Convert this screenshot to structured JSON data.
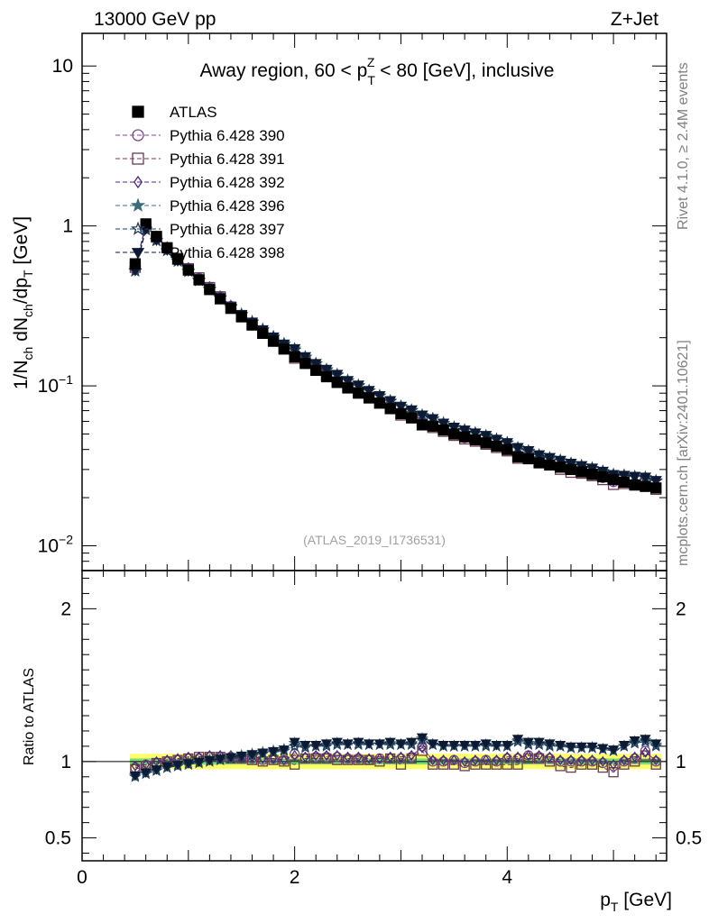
{
  "header": {
    "left": "13000 GeV pp",
    "right": "Z+Jet"
  },
  "plot_title": "Away region, 60 < p_T^Z < 80 [GeV], inclusive",
  "watermark": "(ATLAS_2019_I1736531)",
  "side_labels": {
    "rivet": "Rivet 4.1.0, ≥ 2.4M events",
    "mcplots": "mcplots.cern.ch [arXiv:2401.10621]"
  },
  "colors": {
    "ATLAS": "#000000",
    "p390": "#7b4a8c",
    "p391": "#6b3a52",
    "p392": "#4a2a7a",
    "p396": "#3a6b7a",
    "p397": "#1f3d5c",
    "p398": "#0d1a33",
    "band_yellow": "#ffff66",
    "band_green": "#77dd77"
  },
  "chart_data": [
    {
      "type": "scatter",
      "panel": "main",
      "ylabel": "1/N_ch dN_ch/dp_T [GeV]",
      "yscale": "log",
      "ylim": [
        0.007,
        16
      ],
      "xlim": [
        0,
        5.5
      ],
      "y_ticks": [
        {
          "value": 0.01,
          "label": "10",
          "exp": "−2"
        },
        {
          "value": 0.1,
          "label": "10",
          "exp": "−1"
        },
        {
          "value": 1,
          "label": "1",
          "exp": ""
        },
        {
          "value": 10,
          "label": "10",
          "exp": ""
        }
      ],
      "x": [
        0.5,
        0.6,
        0.7,
        0.8,
        0.9,
        1.0,
        1.1,
        1.2,
        1.3,
        1.4,
        1.5,
        1.6,
        1.7,
        1.8,
        1.9,
        2.0,
        2.1,
        2.2,
        2.3,
        2.4,
        2.5,
        2.6,
        2.7,
        2.8,
        2.9,
        3.0,
        3.1,
        3.2,
        3.3,
        3.4,
        3.5,
        3.6,
        3.7,
        3.8,
        3.9,
        4.0,
        4.1,
        4.2,
        4.3,
        4.4,
        4.5,
        4.6,
        4.7,
        4.8,
        4.9,
        5.0,
        5.1,
        5.2,
        5.3,
        5.4
      ],
      "atlas": [
        0.58,
        1.03,
        0.86,
        0.73,
        0.62,
        0.53,
        0.46,
        0.4,
        0.35,
        0.305,
        0.27,
        0.24,
        0.213,
        0.19,
        0.17,
        0.152,
        0.138,
        0.125,
        0.114,
        0.105,
        0.097,
        0.09,
        0.084,
        0.078,
        0.072,
        0.067,
        0.063,
        0.057,
        0.056,
        0.053,
        0.05,
        0.048,
        0.046,
        0.044,
        0.042,
        0.04,
        0.036,
        0.035,
        0.033,
        0.032,
        0.031,
        0.03,
        0.029,
        0.028,
        0.027,
        0.026,
        0.025,
        0.024,
        0.0235,
        0.023
      ],
      "legend": [
        {
          "name": "ATLAS",
          "marker": "square-filled",
          "color_key": "ATLAS"
        },
        {
          "name": "Pythia 6.428 390",
          "marker": "circle-open",
          "color_key": "p390"
        },
        {
          "name": "Pythia 6.428 391",
          "marker": "square-open",
          "color_key": "p391"
        },
        {
          "name": "Pythia 6.428 392",
          "marker": "diamond-open",
          "color_key": "p392"
        },
        {
          "name": "Pythia 6.428 396",
          "marker": "star-filled",
          "color_key": "p396"
        },
        {
          "name": "Pythia 6.428 397",
          "marker": "star-open",
          "color_key": "p397"
        },
        {
          "name": "Pythia 6.428 398",
          "marker": "triangle-down-filled",
          "color_key": "p398"
        }
      ]
    },
    {
      "type": "scatter",
      "panel": "ratio",
      "ylabel": "Ratio to ATLAS",
      "xlabel": "p_T [GeV]",
      "ylim": [
        0.35,
        2.25
      ],
      "xlim": [
        0,
        5.5
      ],
      "x_ticks": [
        {
          "value": 0,
          "label": "0"
        },
        {
          "value": 2,
          "label": "2"
        },
        {
          "value": 4,
          "label": "4"
        }
      ],
      "y_ticks": [
        {
          "value": 0.5,
          "label": "0.5"
        },
        {
          "value": 1,
          "label": "1"
        },
        {
          "value": 2,
          "label": "2"
        }
      ],
      "series": [
        {
          "name": "Pythia 6.428 390",
          "values": [
            0.96,
            0.98,
            0.99,
            1.0,
            1.01,
            1.02,
            1.02,
            1.03,
            1.03,
            1.03,
            1.02,
            1.02,
            1.01,
            1.02,
            1.01,
            1.05,
            1.02,
            1.03,
            1.03,
            1.03,
            1.02,
            1.02,
            1.01,
            1.02,
            1.02,
            1.02,
            1.03,
            1.1,
            1.0,
            1.0,
            1.01,
            0.99,
            1.0,
            1.01,
            1.0,
            1.02,
            1.02,
            1.04,
            1.03,
            1.02,
            1.0,
            1.0,
            1.0,
            1.0,
            0.99,
            0.97,
            1.0,
            1.02,
            1.07,
            1.0
          ]
        },
        {
          "name": "Pythia 6.428 391",
          "values": [
            0.95,
            0.97,
            0.99,
            1.0,
            1.01,
            1.02,
            1.03,
            1.03,
            1.03,
            1.02,
            1.02,
            1.01,
            1.0,
            1.01,
            1.0,
            0.98,
            1.02,
            1.02,
            1.02,
            1.01,
            1.01,
            1.01,
            1.01,
            1.0,
            1.02,
            0.98,
            1.02,
            1.07,
            0.98,
            0.98,
            0.98,
            0.97,
            0.98,
            0.98,
            0.98,
            0.98,
            0.98,
            1.02,
            1.02,
            1.0,
            0.97,
            0.96,
            0.98,
            0.98,
            0.96,
            0.93,
            0.98,
            1.0,
            1.04,
            0.98
          ]
        },
        {
          "name": "Pythia 6.428 392",
          "values": [
            0.97,
            0.98,
            1.0,
            1.01,
            1.02,
            1.03,
            1.03,
            1.04,
            1.04,
            1.04,
            1.03,
            1.03,
            1.02,
            1.02,
            1.01,
            1.04,
            1.03,
            1.04,
            1.04,
            1.04,
            1.03,
            1.03,
            1.02,
            1.02,
            1.03,
            1.03,
            1.04,
            1.09,
            1.01,
            1.01,
            1.01,
            1.0,
            1.01,
            1.01,
            1.01,
            1.03,
            1.03,
            1.04,
            1.04,
            1.03,
            1.01,
            1.01,
            1.01,
            1.01,
            1.0,
            0.98,
            1.01,
            1.03,
            1.06,
            1.01
          ]
        },
        {
          "name": "Pythia 6.428 396",
          "values": [
            0.91,
            0.93,
            0.95,
            0.96,
            0.98,
            0.99,
            1.0,
            1.01,
            1.02,
            1.03,
            1.04,
            1.05,
            1.06,
            1.07,
            1.08,
            1.12,
            1.1,
            1.1,
            1.11,
            1.12,
            1.11,
            1.12,
            1.11,
            1.11,
            1.12,
            1.11,
            1.12,
            1.15,
            1.11,
            1.1,
            1.1,
            1.1,
            1.1,
            1.11,
            1.1,
            1.1,
            1.14,
            1.12,
            1.12,
            1.11,
            1.1,
            1.09,
            1.09,
            1.09,
            1.08,
            1.07,
            1.1,
            1.13,
            1.14,
            1.11
          ]
        },
        {
          "name": "Pythia 6.428 397",
          "values": [
            0.9,
            0.92,
            0.94,
            0.96,
            0.97,
            0.98,
            0.99,
            1.0,
            1.01,
            1.02,
            1.03,
            1.04,
            1.05,
            1.06,
            1.07,
            1.1,
            1.09,
            1.1,
            1.1,
            1.11,
            1.11,
            1.11,
            1.11,
            1.11,
            1.11,
            1.11,
            1.11,
            1.14,
            1.11,
            1.1,
            1.1,
            1.1,
            1.1,
            1.1,
            1.1,
            1.1,
            1.13,
            1.11,
            1.11,
            1.1,
            1.1,
            1.09,
            1.09,
            1.09,
            1.08,
            1.07,
            1.1,
            1.12,
            1.13,
            1.1
          ]
        },
        {
          "name": "Pythia 6.428 398",
          "values": [
            0.91,
            0.93,
            0.95,
            0.97,
            0.98,
            0.99,
            1.0,
            1.01,
            1.02,
            1.03,
            1.04,
            1.05,
            1.06,
            1.07,
            1.08,
            1.13,
            1.11,
            1.11,
            1.12,
            1.13,
            1.12,
            1.13,
            1.12,
            1.12,
            1.13,
            1.12,
            1.13,
            1.16,
            1.12,
            1.11,
            1.11,
            1.11,
            1.11,
            1.12,
            1.11,
            1.11,
            1.15,
            1.13,
            1.13,
            1.12,
            1.11,
            1.1,
            1.1,
            1.1,
            1.09,
            1.08,
            1.11,
            1.14,
            1.15,
            1.12
          ]
        }
      ],
      "band_yellow_halfwidth": 0.05,
      "band_green_halfwidth": 0.02
    }
  ]
}
